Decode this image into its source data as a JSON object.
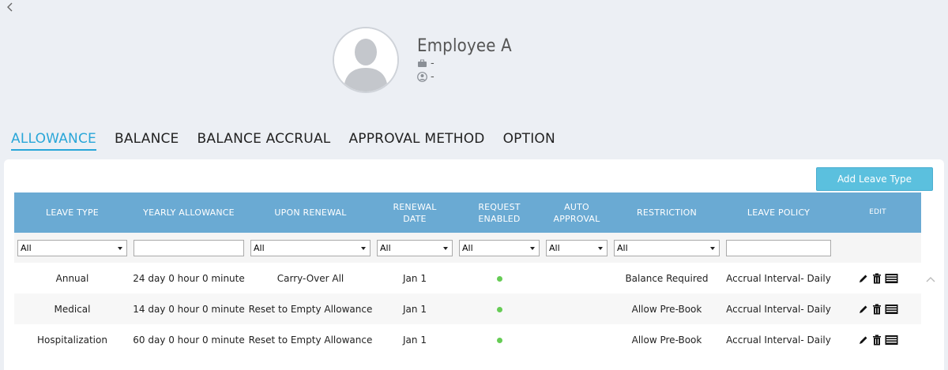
{
  "employee": {
    "name": "Employee A",
    "job": "-",
    "user": "-"
  },
  "tabs": [
    {
      "label": "ALLOWANCE",
      "active": true
    },
    {
      "label": "BALANCE",
      "active": false
    },
    {
      "label": "BALANCE ACCRUAL",
      "active": false
    },
    {
      "label": "APPROVAL METHOD",
      "active": false
    },
    {
      "label": "OPTION",
      "active": false
    }
  ],
  "toolbar": {
    "add_label": "Add Leave Type"
  },
  "table": {
    "columns": {
      "leave_type": "LEAVE TYPE",
      "yearly_allowance": "YEARLY ALLOWANCE",
      "upon_renewal": "UPON RENEWAL",
      "renewal_date_1": "RENEWAL",
      "renewal_date_2": "DATE",
      "request_enabled_1": "REQUEST",
      "request_enabled_2": "ENABLED",
      "auto_approval_1": "AUTO",
      "auto_approval_2": "APPROVAL",
      "restriction": "RESTRICTION",
      "leave_policy": "LEAVE POLICY",
      "edit": "EDIT"
    },
    "filters": {
      "leave_type": "All",
      "upon_renewal": "All",
      "renewal_date": "All",
      "request_enabled": "All",
      "auto_approval": "All",
      "restriction": "All"
    },
    "rows": [
      {
        "leave_type": "Annual",
        "yearly_allowance": "24 day 0 hour 0 minute",
        "upon_renewal": "Carry-Over All",
        "renewal_date": "Jan 1",
        "request_enabled": true,
        "restriction": "Balance Required",
        "leave_policy": "Accrual Interval- Daily"
      },
      {
        "leave_type": "Medical",
        "yearly_allowance": "14 day 0 hour 0 minute",
        "upon_renewal": "Reset to Empty Allowance",
        "renewal_date": "Jan 1",
        "request_enabled": true,
        "restriction": "Allow Pre-Book",
        "leave_policy": "Accrual Interval- Daily"
      },
      {
        "leave_type": "Hospitalization",
        "yearly_allowance": "60 day 0 hour 0 minute",
        "upon_renewal": "Reset to Empty Allowance",
        "renewal_date": "Jan 1",
        "request_enabled": true,
        "restriction": "Allow Pre-Book",
        "leave_policy": "Accrual Interval- Daily"
      }
    ]
  },
  "colors": {
    "accent": "#29a6d8",
    "header_bg": "#6aaad3",
    "button_bg": "#5bc0de",
    "enabled_dot": "#66cc55"
  },
  "icons": {
    "back": "chevron-left-icon",
    "job": "briefcase-icon",
    "user": "user-circle-icon",
    "edit": "pencil-icon",
    "delete": "trash-icon",
    "details": "list-icon",
    "scroll": "chevron-up-icon"
  }
}
